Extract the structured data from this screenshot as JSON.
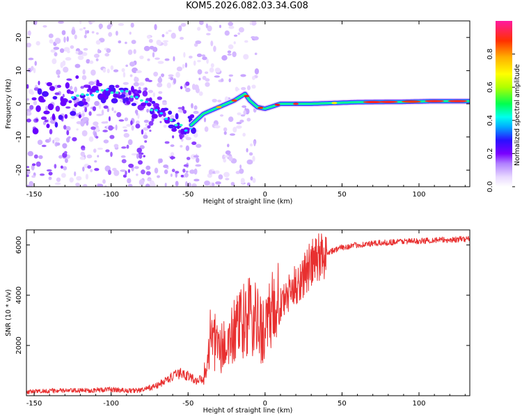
{
  "title": "KOM5.2026.082.03.34.G08",
  "chart_data": [
    {
      "type": "heatmap",
      "name": "spectrogram",
      "xlabel": "Height of straight line (km)",
      "ylabel": "Frequency (Hz)",
      "xlim": [
        -155,
        133
      ],
      "ylim": [
        -25,
        25
      ],
      "xticks": [
        -150,
        -100,
        -50,
        0,
        50,
        100
      ],
      "yticks": [
        -20,
        -10,
        0,
        10,
        20
      ],
      "ridge": {
        "x": [
          -150,
          -130,
          -120,
          -110,
          -100,
          -90,
          -80,
          -70,
          -60,
          -52,
          -47,
          -40,
          -30,
          -20,
          -13,
          -10,
          -5,
          0,
          10,
          30,
          60,
          90,
          110,
          133
        ],
        "y": [
          -2,
          0,
          2,
          4,
          4,
          3,
          1,
          -2,
          -5,
          -8,
          -6,
          -3,
          -1,
          1,
          3,
          1,
          -1,
          -1.5,
          0,
          0,
          0.5,
          0.6,
          0.8,
          0.8
        ]
      },
      "colorbar": {
        "label": "Normalized spectral amplitude",
        "range": [
          0,
          1
        ],
        "ticks": [
          "0.0",
          "0.2",
          "0.4",
          "0.6",
          "0.8"
        ]
      }
    },
    {
      "type": "line",
      "name": "snr",
      "xlabel": "Height of straight line (km)",
      "ylabel": "SNR (10 * v/v)",
      "xlim": [
        -155,
        133
      ],
      "ylim": [
        0,
        6600
      ],
      "xticks": [
        -150,
        -100,
        -50,
        0,
        50,
        100
      ],
      "yticks": [
        2000,
        4000,
        6000
      ],
      "color": "#e83030",
      "series": {
        "name": "SNR",
        "x": [
          -155,
          -140,
          -120,
          -100,
          -90,
          -80,
          -70,
          -62,
          -55,
          -50,
          -45,
          -40,
          -37,
          -35,
          -30,
          -25,
          -20,
          -15,
          -10,
          -5,
          0,
          5,
          10,
          15,
          20,
          25,
          30,
          35,
          40,
          50,
          60,
          70,
          80,
          90,
          100,
          110,
          120,
          133
        ],
        "y": [
          150,
          200,
          200,
          250,
          200,
          220,
          400,
          700,
          900,
          800,
          600,
          700,
          1500,
          2500,
          1800,
          2000,
          2500,
          2800,
          3200,
          2800,
          2600,
          3200,
          3600,
          4000,
          4400,
          4800,
          5200,
          5500,
          5700,
          5900,
          6000,
          6050,
          6100,
          6150,
          6150,
          6200,
          6200,
          6250
        ]
      }
    }
  ]
}
